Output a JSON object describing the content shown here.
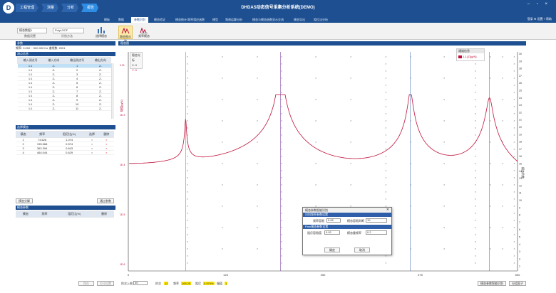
{
  "app": {
    "logo": "D",
    "title": "DHDAS动态信号采集分析系统(DEMO)",
    "window_controls": "– ▫ ×"
  },
  "breadcrumb": [
    "工程管理",
    "测量",
    "分析",
    "报告"
  ],
  "menu": {
    "items": [
      "模板",
      "数据",
      "参数识别",
      "模态验证",
      "模态统计/频率相应函数",
      "模型",
      "频谱运算分析",
      "模态与模态函数显示交流",
      "模态导出",
      "相位法分析"
    ],
    "right": "登录  ⚙ 设置  ? 帮助"
  },
  "toolbar": {
    "sel1": "模态数据1",
    "sel1_label": "数据设置",
    "sel2": "PolyLSCF",
    "sel2_label": "识别方法",
    "buttons": [
      "选择模态",
      "稳态图示和",
      "频率模态"
    ]
  },
  "left": {
    "header": "参数",
    "range": "频率: 0.000 ~ 500.000 Hz   谱线数: 2001",
    "measure_header": "测点信息",
    "measure_cols": [
      "输入测点号",
      "输入方向",
      "输出测点号",
      "输出方向"
    ],
    "measure_rows": [
      [
        "1:1",
        "Z-",
        "1",
        "Z-"
      ],
      [
        "1:1",
        "Z-",
        "2",
        "Z-"
      ],
      [
        "1:1",
        "Z-",
        "3",
        "Z-"
      ],
      [
        "1:1",
        "Z-",
        "4",
        "Z-"
      ],
      [
        "1:1",
        "Z-",
        "5",
        "Z-"
      ],
      [
        "1:1",
        "Z-",
        "6",
        "Z-"
      ],
      [
        "1:1",
        "Z-",
        "7",
        "Z-"
      ],
      [
        "1:1",
        "Z-",
        "8",
        "Z-"
      ],
      [
        "1:1",
        "Z-",
        "9",
        "Z-"
      ],
      [
        "1:1",
        "Z-",
        "10",
        "Z-"
      ],
      [
        "1:1",
        "Z-",
        "11",
        "Z-"
      ]
    ],
    "sel_header": "选择模态",
    "sel_cols": [
      "模态",
      "频率",
      "阻尼比(%)",
      "选择",
      "删除"
    ],
    "sel_rows": [
      [
        "1",
        "73.626",
        "1.074",
        "×",
        "×"
      ],
      [
        "2",
        "195.568",
        "0.574",
        "×",
        "×"
      ],
      [
        "3",
        "362.394",
        "0.643",
        "×",
        "×"
      ],
      [
        "4",
        "464.044",
        "0.629",
        "×",
        "×"
      ]
    ],
    "btn_left": "模态分解",
    "btn_right": "通过参数",
    "param_header": "模态参数",
    "param_cols": [
      "模态",
      "频率",
      "阻尼比(%)",
      "删除"
    ]
  },
  "plot": {
    "header": "稳态图",
    "legend_title": "通道信息",
    "legend_item": "1-1(Z)[g/N]",
    "legend_color": "#c0103a",
    "cursor_box": [
      "稳态光标",
      "X: 0",
      "Y: 0"
    ],
    "y_left_label": "幅值(g/N)",
    "y_right_label": "模态阶数",
    "x_ticks": [
      "0",
      "125",
      "250",
      "375",
      "500"
    ],
    "y_right_ticks": [
      "30",
      "29",
      "28",
      "27",
      "26",
      "25",
      "24",
      "23",
      "22",
      "21",
      "20",
      "19",
      "18",
      "17",
      "16",
      "15",
      "14",
      "13",
      "12",
      "11",
      "10",
      "9",
      "8",
      "7",
      "6",
      "5",
      "4",
      "3",
      "2",
      "1"
    ],
    "y_left_ticks": [
      "0.01",
      "1E-3",
      "1E-4",
      "1E-5",
      "1E-6"
    ]
  },
  "dialog": {
    "title": "模态参数智能识别",
    "sec1": "识别频率参数设置",
    "f1_label": "频率容限",
    "f1_val": "0.06",
    "f2_label": "模态容限判断",
    "f2_val": "10",
    "sec2": "Pam模态参数设置",
    "d1_label": "阻尼容限值",
    "d1_val": "0.02",
    "d2_label": "模态重频率",
    "d2_val": "0.2",
    "ok": "确定",
    "cancel": "取消"
  },
  "status": {
    "btn1": "保存",
    "btn2": "打印设置",
    "order_label": "阶次上限",
    "order_val": "30",
    "items": [
      [
        "阶次",
        "12"
      ],
      [
        "频率",
        "165.25"
      ],
      [
        "阻尼",
        "0.579%"
      ],
      [
        "幅值",
        "1"
      ]
    ],
    "btn_right1": "模态参数智能识别",
    "btn_right2": "分组离子"
  },
  "chart_data": {
    "type": "line",
    "xlabel": "",
    "ylabel": "",
    "xlim": [
      0,
      500
    ],
    "ylog": true,
    "peaks_hz": [
      73.626,
      195.568,
      362.394,
      464.044
    ],
    "series": [
      {
        "name": "1-1(Z)[g/N]"
      }
    ]
  }
}
